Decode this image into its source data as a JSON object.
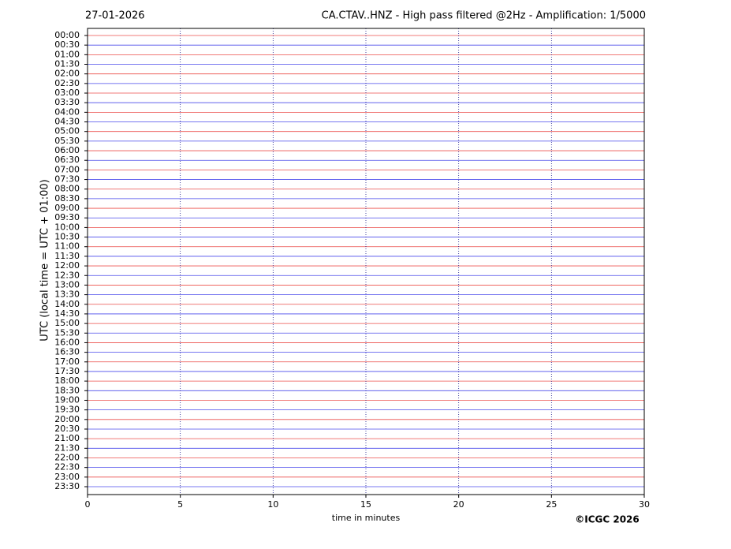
{
  "chart_data": {
    "type": "helicorder",
    "date": "27-01-2026",
    "title": "CA.CTAV..HNZ - High pass filtered @2Hz - Amplification: 1/5000",
    "xlabel": "time in minutes",
    "ylabel": "UTC (local time = UTC + 01:00)",
    "copyright": "©ICGC 2026",
    "categories": [
      "00:00",
      "00:30",
      "01:00",
      "01:30",
      "02:00",
      "02:30",
      "03:00",
      "03:30",
      "04:00",
      "04:30",
      "05:00",
      "05:30",
      "06:00",
      "06:30",
      "07:00",
      "07:30",
      "08:00",
      "08:30",
      "09:00",
      "09:30",
      "10:00",
      "10:30",
      "11:00",
      "11:30",
      "12:00",
      "12:30",
      "13:00",
      "13:30",
      "14:00",
      "14:30",
      "15:00",
      "15:30",
      "16:00",
      "16:30",
      "17:00",
      "17:30",
      "18:00",
      "18:30",
      "19:00",
      "19:30",
      "20:00",
      "20:30",
      "21:00",
      "21:30",
      "22:00",
      "22:30",
      "23:00",
      "23:30"
    ],
    "xlim": [
      0,
      30
    ],
    "xticks": [
      0,
      5,
      10,
      15,
      20,
      25,
      30
    ],
    "grid": true,
    "trace_colors": [
      "#e8302a",
      "#2a2ae8"
    ]
  }
}
